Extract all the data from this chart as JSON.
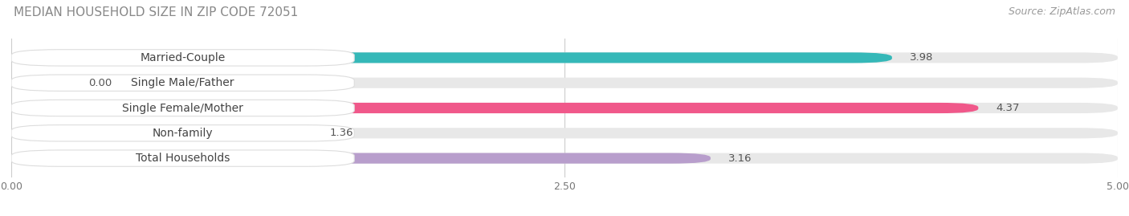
{
  "title": "MEDIAN HOUSEHOLD SIZE IN ZIP CODE 72051",
  "source": "Source: ZipAtlas.com",
  "categories": [
    "Married-Couple",
    "Single Male/Father",
    "Single Female/Mother",
    "Non-family",
    "Total Households"
  ],
  "values": [
    3.98,
    0.0,
    4.37,
    1.36,
    3.16
  ],
  "bar_colors": [
    "#35b8b8",
    "#aabde8",
    "#f0588a",
    "#f5c98a",
    "#b89ecc"
  ],
  "label_bg_colors": [
    "#ffffff",
    "#ffffff",
    "#ffffff",
    "#ffffff",
    "#ffffff"
  ],
  "xlim": [
    0,
    5.0
  ],
  "xtick_labels": [
    "0.00",
    "2.50",
    "5.00"
  ],
  "xtick_values": [
    0.0,
    2.5,
    5.0
  ],
  "title_fontsize": 11,
  "source_fontsize": 9,
  "label_fontsize": 10,
  "value_fontsize": 9.5,
  "background_color": "#ffffff",
  "bar_background": "#e8e8e8",
  "bar_height": 0.42,
  "bar_spacing": 1.0,
  "value_color_inside": "#ffffff",
  "value_color_outside": "#666666"
}
